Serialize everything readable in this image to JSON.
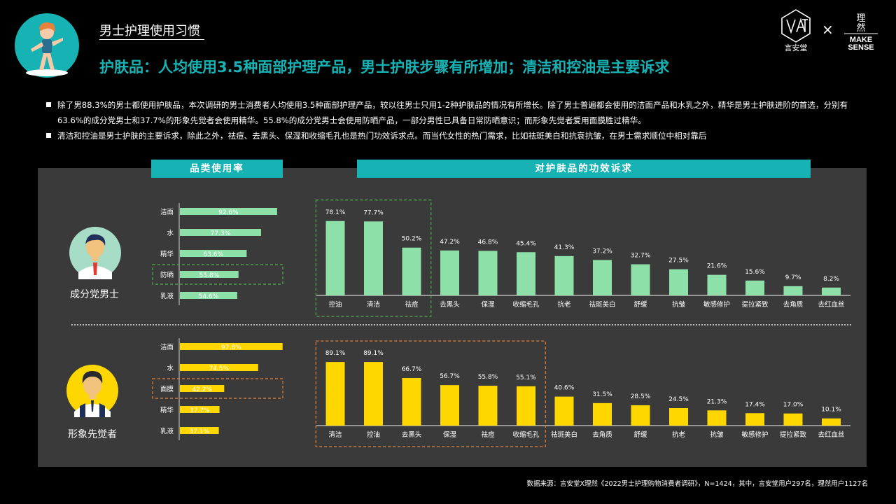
{
  "page": {
    "section_title": "男士护理使用习惯",
    "headline": "护肤品：人均使用3.5种面部护理产品，男士护肤步骤有所增加；清洁和控油是主要诉求",
    "bullets": [
      "除了男88.3%的男士都使用护肤品，本次调研的男士消费者人均使用3.5种面部护理产品，较以往男士只用1-2种护肤品的情况有所增长。除了男士普遍都会使用的洁面产品和水乳之外，精华是男士护肤进阶的首选，分别有63.6%的成分党男士和37.7%的形象先觉者会使用精华。55.8%的成分党男士会使用防晒产品，一部分男性已具备日常防晒意识；而形象先觉者爱用面膜胜过精华。",
      "清洁和控油是男士护肤的主要诉求，除此之外，祛痘、去黑头、保湿和收缩毛孔也是热门功效诉求点。而当代女性的热门需求，比如祛斑美白和抗衰抗皱，在男士需求顺位中相对靠后"
    ],
    "left_header": "品类使用率",
    "right_header": "对护肤品的功效诉求",
    "source": "数据来源：言安堂X理然《2022男士护理购物消费者调研》，N=1424，其中，言安堂用户297名，理然用户1127名",
    "logo_left_text": "言安堂",
    "logo_times": "×",
    "logo_right_cn": "理\n然",
    "logo_right_en_1": "MAKE",
    "logo_right_en_2": "SENSE",
    "colors": {
      "teal": "#17b3b4",
      "green": "#8de0a8",
      "yellow": "#ffd700",
      "panel": "#3a3a3a",
      "green_box": "#4caf50",
      "orange_box": "#e8823a"
    }
  },
  "chart_data": [
    {
      "type": "bar",
      "group": "成分党男士",
      "orientation": "horizontal",
      "categories": [
        "洁面",
        "水",
        "精华",
        "防晒",
        "乳液"
      ],
      "values": [
        92.6,
        77.3,
        63.6,
        55.8,
        54.6
      ],
      "labels": [
        "92.6%",
        "77.3%",
        "63.6%",
        "55.8%",
        "54.6%"
      ],
      "highlight": [
        "防晒"
      ]
    },
    {
      "type": "bar",
      "group": "成分党男士",
      "orientation": "vertical",
      "categories": [
        "控油",
        "清洁",
        "祛痘",
        "去黑头",
        "保湿",
        "收缩毛孔",
        "抗老",
        "祛斑美白",
        "舒缓",
        "抗皱",
        "敏感修护",
        "提拉紧致",
        "去角质",
        "去红血丝"
      ],
      "values": [
        78.1,
        77.7,
        50.2,
        47.2,
        46.8,
        45.4,
        41.3,
        37.2,
        32.7,
        27.5,
        21.6,
        15.6,
        9.7,
        8.2
      ],
      "labels": [
        "78.1%",
        "77.7%",
        "50.2%",
        "47.2%",
        "46.8%",
        "45.4%",
        "41.3%",
        "37.2%",
        "32.7%",
        "27.5%",
        "21.6%",
        "15.6%",
        "9.7%",
        "8.2%"
      ],
      "highlight": [
        "控油",
        "清洁",
        "祛痘"
      ]
    },
    {
      "type": "bar",
      "group": "形象先觉者",
      "orientation": "horizontal",
      "categories": [
        "洁面",
        "水",
        "面膜",
        "精华",
        "乳液"
      ],
      "values": [
        97.8,
        74.5,
        42.2,
        37.7,
        37.1
      ],
      "labels": [
        "97.8%",
        "74.5%",
        "42.2%",
        "37.7%",
        "37.1%"
      ],
      "highlight": [
        "面膜"
      ]
    },
    {
      "type": "bar",
      "group": "形象先觉者",
      "orientation": "vertical",
      "categories": [
        "清洁",
        "控油",
        "去黑头",
        "保湿",
        "祛痘",
        "收缩毛孔",
        "祛斑美白",
        "去角质",
        "舒缓",
        "抗老",
        "抗皱",
        "敏感修护",
        "提拉紧致",
        "去红血丝"
      ],
      "values": [
        89.1,
        89.1,
        66.7,
        56.7,
        55.8,
        55.1,
        40.6,
        31.5,
        28.5,
        24.5,
        21.3,
        17.4,
        17.0,
        10.1
      ],
      "labels": [
        "89.1%",
        "89.1%",
        "66.7%",
        "56.7%",
        "55.8%",
        "55.1%",
        "40.6%",
        "31.5%",
        "28.5%",
        "24.5%",
        "21.3%",
        "17.4%",
        "17.0%",
        "10.1%"
      ],
      "highlight": [
        "清洁",
        "控油",
        "去黑头",
        "保湿",
        "祛痘",
        "收缩毛孔"
      ]
    }
  ]
}
